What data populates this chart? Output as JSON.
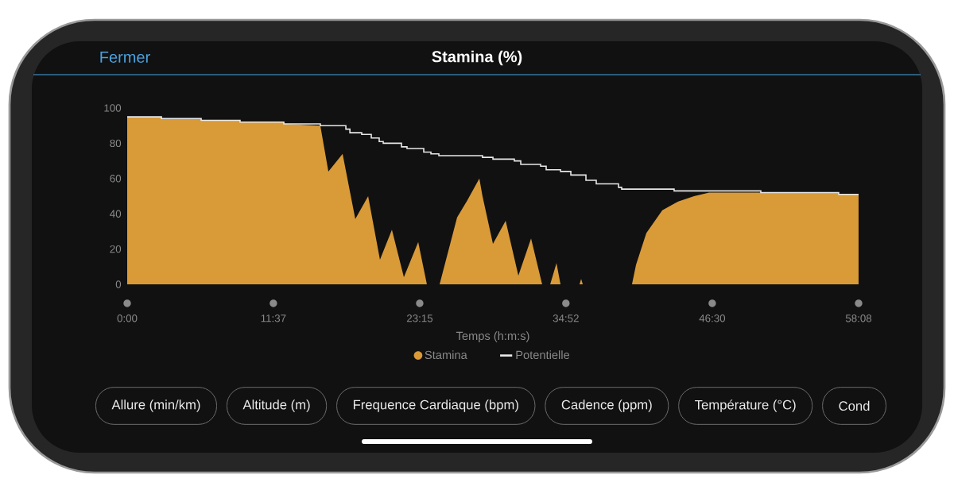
{
  "chart_data": {
    "type": "area",
    "title": "Stamina (%)",
    "xlabel": "Temps (h:m:s)",
    "xlim": [
      0,
      58.133
    ],
    "ylim": [
      0,
      100
    ],
    "xticks": [
      {
        "value": 0,
        "label": "0:00"
      },
      {
        "value": 11.617,
        "label": "11:37"
      },
      {
        "value": 23.25,
        "label": "23:15"
      },
      {
        "value": 34.867,
        "label": "34:52"
      },
      {
        "value": 46.5,
        "label": "46:30"
      },
      {
        "value": 58.133,
        "label": "58:08"
      }
    ],
    "yticks": [
      0,
      20,
      40,
      60,
      80,
      100
    ],
    "legend": "bottom",
    "series": [
      {
        "name": "Stamina",
        "color": "#d99a38",
        "x": [
          0,
          2.72,
          2.72,
          5.88,
          5.88,
          8.97,
          8.97,
          12.45,
          12.45,
          15.35,
          15.99,
          17.12,
          18.13,
          19.15,
          20.09,
          21.04,
          21.99,
          23.13,
          23.82,
          24.83,
          26.22,
          26.98,
          27.99,
          28.24,
          29.07,
          30.08,
          31.09,
          32.1,
          32.98,
          33.62,
          34.12,
          34.44,
          35.95,
          36.08,
          36.21,
          40.12,
          40.44,
          41.26,
          42.53,
          43.79,
          45.05,
          46.25,
          56.55,
          56.55,
          58.13
        ],
        "values": [
          95,
          95,
          94,
          94,
          93,
          93,
          92,
          92,
          91,
          90,
          64,
          74,
          37,
          50,
          14,
          31,
          4,
          24,
          0,
          0,
          38,
          47,
          60,
          50,
          23,
          36,
          5,
          26,
          0,
          0,
          12,
          0,
          0,
          3,
          0,
          0,
          11,
          29,
          42,
          47,
          50,
          52,
          52,
          51,
          51
        ]
      },
      {
        "name": "Potentielle",
        "type": "step",
        "color": "#e8e8e8",
        "x": [
          0,
          2.72,
          5.88,
          8.97,
          12.45,
          15.35,
          17.38,
          17.7,
          18.64,
          19.4,
          20.03,
          20.35,
          21.8,
          22.24,
          23.57,
          24.14,
          24.77,
          28.24,
          29.07,
          30.77,
          31.28,
          32.86,
          33.3,
          34.44,
          35.26,
          36.46,
          37.28,
          39.05,
          39.3,
          43.47,
          50.36,
          56.55,
          58.13
        ],
        "values": [
          95,
          94,
          93,
          92,
          91,
          90,
          88,
          86,
          85,
          83,
          81,
          80,
          78,
          77,
          75,
          74,
          73,
          72,
          71,
          70,
          68,
          67,
          65,
          64,
          62,
          59,
          57,
          55,
          54,
          53,
          52,
          51,
          51
        ]
      }
    ],
    "annotations": [
      "Fermer",
      "Allure (min/km)",
      "Altitude (m)",
      "Frequence Cardiaque (bpm)",
      "Cadence (ppm)",
      "Température (°C)",
      "Cond"
    ]
  }
}
